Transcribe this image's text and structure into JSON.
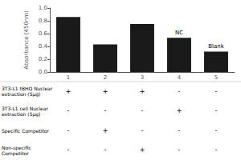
{
  "chart_data": {
    "type": "bar",
    "categories": [
      "1",
      "2",
      "3",
      "4",
      "5"
    ],
    "values": [
      0.86,
      0.43,
      0.75,
      0.535,
      0.32
    ],
    "color": "#1a1a1a",
    "y_label": "Absorbance (450nm)",
    "ylim": [
      0.0,
      1.0
    ],
    "yticks": [
      {
        "value": 0.0,
        "label": "0.0"
      },
      {
        "value": 0.2,
        "label": "0.2"
      },
      {
        "value": 0.4,
        "label": "0.4"
      },
      {
        "value": 0.6,
        "label": "0.6"
      },
      {
        "value": 0.8,
        "label": "0.8"
      },
      {
        "value": 1.0,
        "label": "1.0"
      }
    ],
    "grid": false,
    "annotations": [
      {
        "text": "NC",
        "category": "4"
      },
      {
        "text": "Blank",
        "category": "5"
      }
    ],
    "table_rows": [
      {
        "label": "3T3-L1 tBHQ Nuclear\nextraction (5μg)",
        "values": [
          "+",
          "+",
          "+",
          "-",
          "-"
        ]
      },
      {
        "label": "3T3-L1 cell Nuclear\nextraction (5μg)",
        "values": [
          "-",
          "-",
          "-",
          "+",
          "-"
        ]
      },
      {
        "label": "Specific Competitor",
        "values": [
          "-",
          "+",
          "-",
          "-",
          "-"
        ]
      },
      {
        "label": "Non-specific\nCompetitor",
        "values": [
          "-",
          "-",
          "+",
          "-",
          "-"
        ]
      }
    ]
  }
}
